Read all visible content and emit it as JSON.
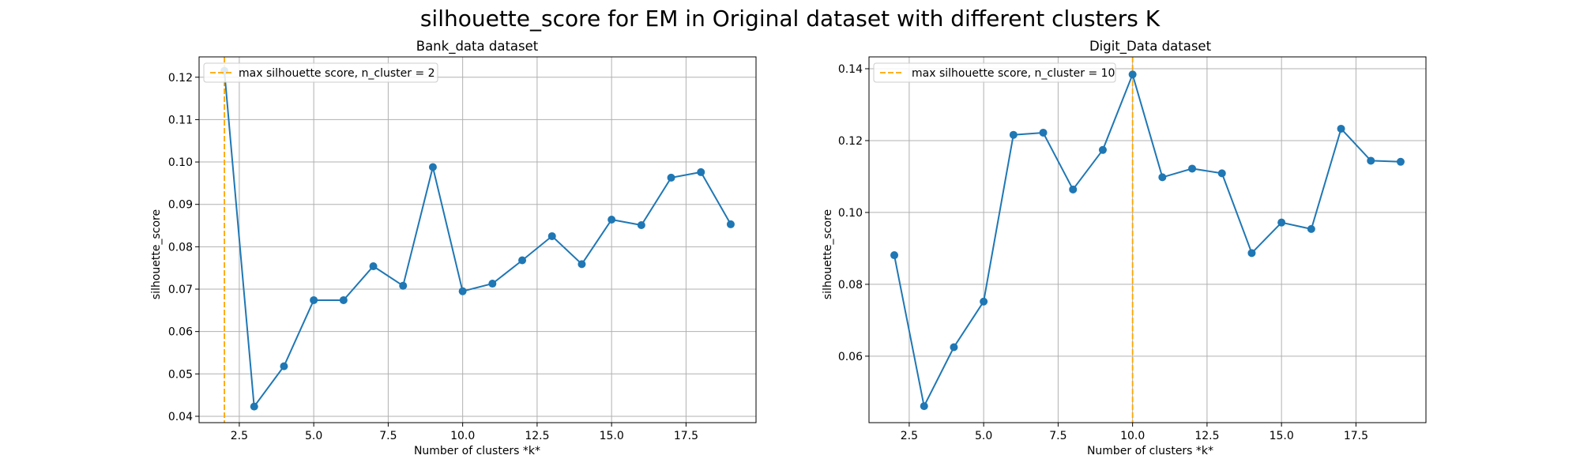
{
  "figure": {
    "suptitle": "silhouette_score for EM in Original dataset with different clusters K"
  },
  "colors": {
    "series": "#1f77b4",
    "vline": "#ffa500",
    "grid": "#b0b0b0",
    "axes": "#000000"
  },
  "chart_data": [
    {
      "type": "line",
      "title": "Bank_data dataset",
      "xlabel": "Number of clusters *k*",
      "ylabel": "silhouette_score",
      "grid": true,
      "legend_placement": "upper-left",
      "xlim": [
        1.15,
        19.85
      ],
      "ylim": [
        0.0385,
        0.1248
      ],
      "xticks": [
        2.5,
        5.0,
        7.5,
        10.0,
        12.5,
        15.0,
        17.5
      ],
      "xtick_labels": [
        "2.5",
        "5.0",
        "7.5",
        "10.0",
        "12.5",
        "15.0",
        "17.5"
      ],
      "yticks": [
        0.04,
        0.05,
        0.06,
        0.07,
        0.08,
        0.09,
        0.1,
        0.11,
        0.12
      ],
      "ytick_labels": [
        "0.04",
        "0.05",
        "0.06",
        "0.07",
        "0.08",
        "0.09",
        "0.10",
        "0.11",
        "0.12"
      ],
      "x": [
        2,
        3,
        4,
        5,
        6,
        7,
        8,
        9,
        10,
        11,
        12,
        13,
        14,
        15,
        16,
        17,
        18,
        19
      ],
      "series": [
        {
          "values": [
            0.1215,
            0.0423,
            0.0518,
            0.0674,
            0.0674,
            0.0754,
            0.0708,
            0.0988,
            0.0695,
            0.0713,
            0.0768,
            0.0825,
            0.0759,
            0.0864,
            0.0851,
            0.0963,
            0.0976,
            0.0853
          ]
        }
      ],
      "vline": {
        "x": 2,
        "label": "max silhouette score, n_cluster = 2"
      }
    },
    {
      "type": "line",
      "title": "Digit_Data dataset",
      "xlabel": "Number of clusters *k*",
      "ylabel": "silhouette_score",
      "grid": true,
      "legend_placement": "upper-left",
      "xlim": [
        1.15,
        19.85
      ],
      "ylim": [
        0.0415,
        0.1433
      ],
      "xticks": [
        2.5,
        5.0,
        7.5,
        10.0,
        12.5,
        15.0,
        17.5
      ],
      "xtick_labels": [
        "2.5",
        "5.0",
        "7.5",
        "10.0",
        "12.5",
        "15.0",
        "17.5"
      ],
      "yticks": [
        0.06,
        0.08,
        0.1,
        0.12,
        0.14
      ],
      "ytick_labels": [
        "0.06",
        "0.08",
        "0.10",
        "0.12",
        "0.14"
      ],
      "x": [
        2,
        3,
        4,
        5,
        6,
        7,
        8,
        9,
        10,
        11,
        12,
        13,
        14,
        15,
        16,
        17,
        18,
        19
      ],
      "series": [
        {
          "values": [
            0.0881,
            0.0461,
            0.0625,
            0.0752,
            0.1216,
            0.1222,
            0.1064,
            0.1174,
            0.1384,
            0.1098,
            0.1122,
            0.1109,
            0.0887,
            0.0972,
            0.0954,
            0.1233,
            0.1144,
            0.1141
          ]
        }
      ],
      "vline": {
        "x": 10,
        "label": "max silhouette score, n_cluster = 10"
      }
    }
  ]
}
